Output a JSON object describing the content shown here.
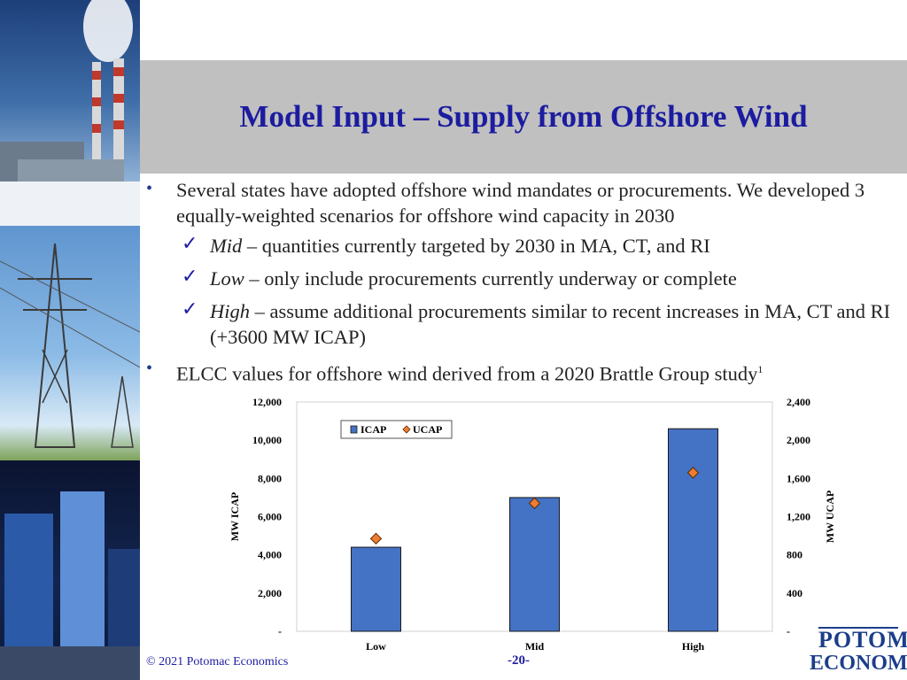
{
  "slide": {
    "title": "Model Input – Supply from Offshore Wind",
    "bullets": [
      {
        "text": "Several states have adopted offshore wind mandates or procurements. We developed 3 equally-weighted scenarios for offshore wind capacity in 2030"
      },
      {
        "text": "ELCC values for offshore wind derived from a 2020 Brattle Group study",
        "sup": "1"
      }
    ],
    "subbullets": [
      {
        "term": "Mid",
        "text": " – quantities currently targeted by 2030 in MA, CT, and RI"
      },
      {
        "term": "Low",
        "text": " – only include procurements currently underway or complete"
      },
      {
        "term": "High",
        "text": " – assume additional procurements similar to recent increases in MA, CT and RI (+3600 MW ICAP)"
      }
    ],
    "footer": "© 2021 Potomac Economics",
    "page_number": "-20-",
    "logo": {
      "line1": "POTOMAC",
      "line2": "ECONOMICS"
    }
  },
  "chart_data": {
    "type": "bar",
    "categories": [
      "Low",
      "Mid",
      "High"
    ],
    "series": [
      {
        "name": "ICAP",
        "axis": "left",
        "kind": "bar",
        "values": [
          4400,
          7000,
          10600
        ],
        "color": "#4472c4"
      },
      {
        "name": "UCAP",
        "axis": "right",
        "kind": "marker",
        "values": [
          970,
          1340,
          1660
        ],
        "color": "#ed7d31"
      }
    ],
    "y_left": {
      "label": "MW ICAP",
      "range": [
        0,
        12000
      ],
      "ticks": [
        "-",
        "2,000",
        "4,000",
        "6,000",
        "8,000",
        "10,000",
        "12,000"
      ]
    },
    "y_right": {
      "label": "MW UCAP",
      "range": [
        0,
        2400
      ],
      "ticks": [
        "-",
        "400",
        "800",
        "1,200",
        "1,600",
        "2,000",
        "2,400"
      ]
    },
    "legend": "top-left",
    "grid": false
  }
}
